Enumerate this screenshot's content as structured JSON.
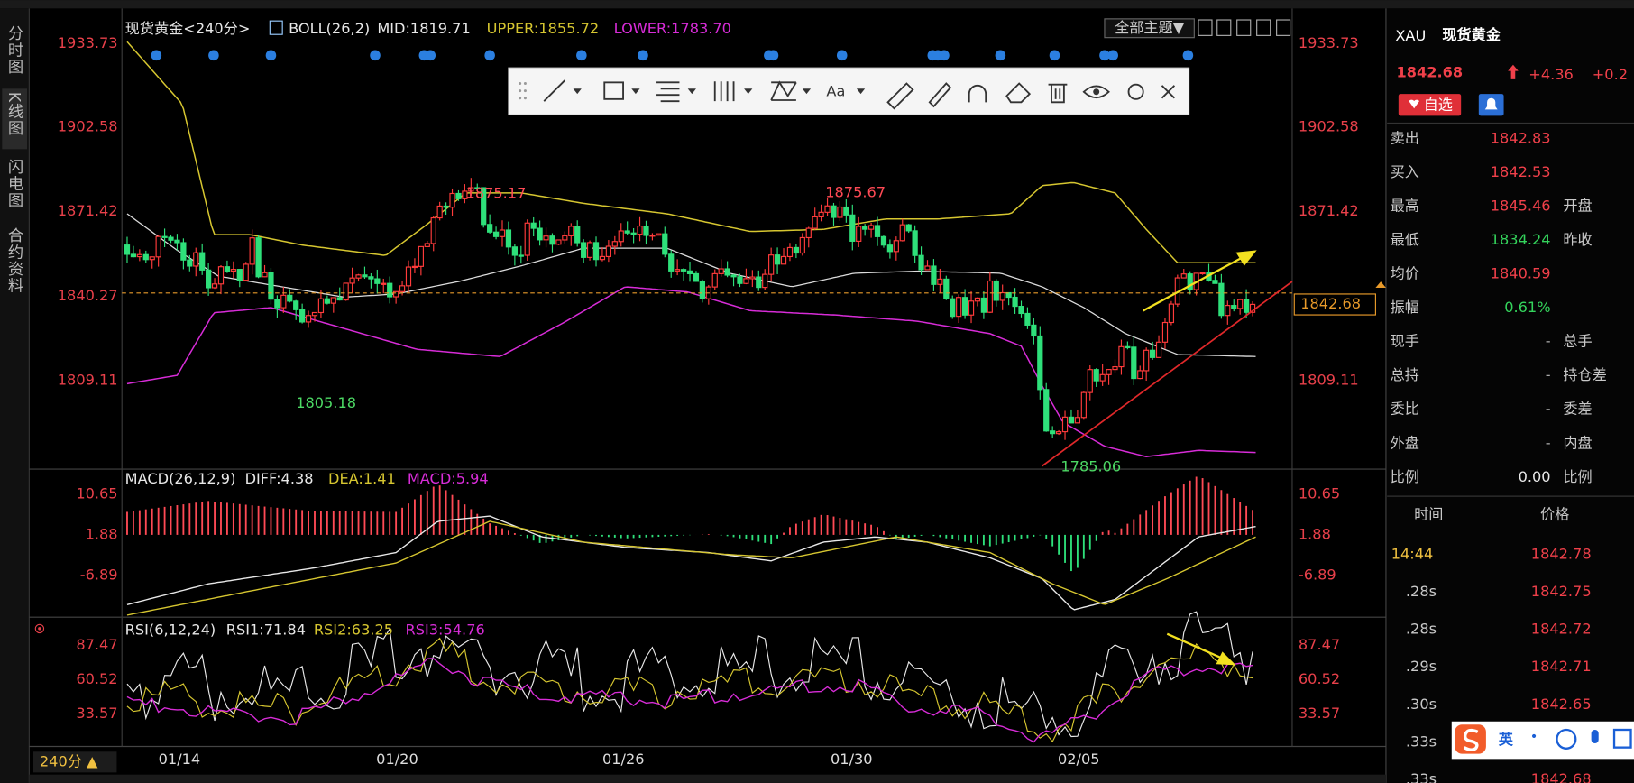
{
  "sidebar": {
    "tabs": [
      "分时图",
      "K线图",
      "闪电图",
      "合约资料"
    ]
  },
  "chart": {
    "header": {
      "symbol": "现货黄金<240分>",
      "indicator": "BOLL(26,2)",
      "mid": "MID:1819.71",
      "upper": "UPPER:1855.72",
      "lower": "LOWER:1783.70"
    },
    "theme_button": "全部主题▼",
    "toolbar": {
      "font": "Aa"
    },
    "price_axis": [
      "1933.73",
      "1902.58",
      "1871.42",
      "1840.27",
      "1809.11"
    ],
    "annotations": {
      "high_1": "1875.17",
      "high_2": "1875.67",
      "low_1": "1805.18",
      "low_2": "1785.06"
    },
    "current_price": "1842.68"
  },
  "macd": {
    "header": {
      "name": "MACD(26,12,9)",
      "diff": "DIFF:4.38",
      "dea": "DEA:1.41",
      "macd": "MACD:5.94"
    },
    "axis": [
      "10.65",
      "1.88",
      "-6.89"
    ]
  },
  "rsi": {
    "header": {
      "name": "RSI(6,12,24)",
      "rsi1": "RSI1:71.84",
      "rsi2": "RSI2:63.25",
      "rsi3": "RSI3:54.76"
    },
    "axis": [
      "87.47",
      "60.52",
      "33.57"
    ]
  },
  "time_axis": {
    "period": "240分 ▲",
    "dates": [
      "01/14",
      "01/20",
      "01/26",
      "01/30",
      "02/05"
    ]
  },
  "quote": {
    "code": "XAU",
    "name": "现货黄金",
    "price": "1842.68",
    "change": "+4.36",
    "change_pct": "+0.2",
    "watch_button": "自选",
    "rows": [
      {
        "label": "卖出",
        "value": "1842.83"
      },
      {
        "label": "买入",
        "value": "1842.53"
      },
      {
        "label": "最高",
        "value": "1845.46",
        "label2": "开盘"
      },
      {
        "label": "最低",
        "value": "1834.24",
        "label2": "昨收"
      },
      {
        "label": "均价",
        "value": "1840.59"
      },
      {
        "label": "振幅",
        "value": "0.61%"
      },
      {
        "label": "现手",
        "value": "-",
        "label2": "总手"
      },
      {
        "label": "总持",
        "value": "-",
        "label2": "持仓差"
      },
      {
        "label": "委比",
        "value": "-",
        "label2": "委差"
      },
      {
        "label": "外盘",
        "value": "-",
        "label2": "内盘"
      },
      {
        "label": "比例",
        "value": "0.00",
        "label2": "比例"
      }
    ],
    "ticks": {
      "header": [
        "时间",
        "价格"
      ],
      "rows": [
        [
          "14:44",
          "1842.78"
        ],
        [
          ".28s",
          "1842.75"
        ],
        [
          ".28s",
          "1842.72"
        ],
        [
          ".29s",
          "1842.71"
        ],
        [
          ".30s",
          "1842.65"
        ],
        [
          ".33s"
        ],
        [
          ".33s",
          "1842.68"
        ]
      ]
    },
    "ime": "英"
  }
}
